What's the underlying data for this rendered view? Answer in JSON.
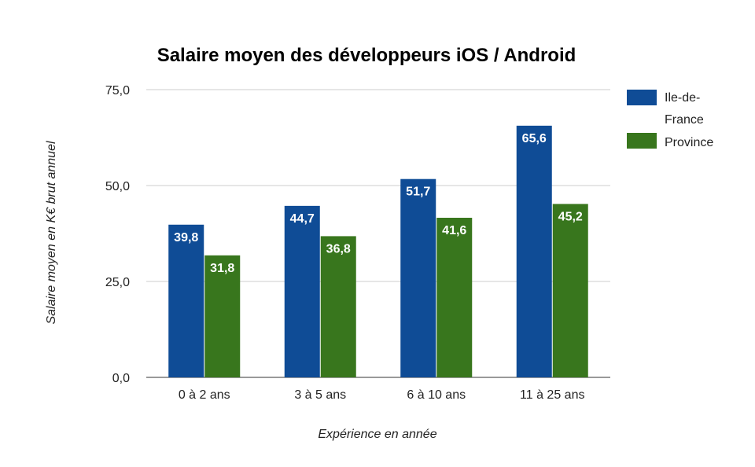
{
  "chart_data": {
    "type": "bar",
    "title": "Salaire moyen des développeurs iOS / Android",
    "xlabel": "Expérience en année",
    "ylabel": "Salaire moyen en K€ brut annuel",
    "categories": [
      "0 à 2 ans",
      "3 à 5 ans",
      "6 à 10 ans",
      "11 à 25 ans"
    ],
    "series": [
      {
        "name": "Ile-de-France",
        "color": "#0f4c96",
        "values": [
          39.8,
          44.7,
          51.7,
          65.6
        ],
        "labels": [
          "39,8",
          "44,7",
          "51,7",
          "65,6"
        ]
      },
      {
        "name": "Province",
        "color": "#38761d",
        "values": [
          31.8,
          36.8,
          41.6,
          45.2
        ],
        "labels": [
          "31,8",
          "36,8",
          "41,6",
          "45,2"
        ]
      }
    ],
    "ylim": [
      0,
      75
    ],
    "yticks": [
      0,
      25,
      50,
      75
    ],
    "ytick_labels": [
      "0,0",
      "25,0",
      "50,0",
      "75,0"
    ],
    "legend": {
      "position": "right",
      "entries": [
        "Ile-de-",
        "France",
        "Province"
      ]
    },
    "grid": true
  }
}
